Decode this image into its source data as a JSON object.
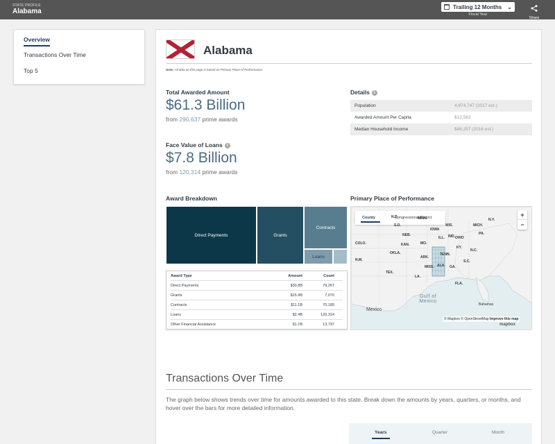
{
  "header": {
    "eyebrow": "STATE PROFILE",
    "state": "Alabama",
    "fiscal_selector": "Trailing 12 Months",
    "fiscal_caption": "Fiscal Year",
    "share_label": "Share"
  },
  "sidebar": {
    "items": [
      {
        "label": "Overview"
      },
      {
        "label": "Transactions Over Time"
      },
      {
        "label": "Top 5"
      }
    ]
  },
  "overview": {
    "title": "Alabama",
    "note_bold": "Note:",
    "note_text": "All data on this page is based on Primary Place of Performance.",
    "total_label": "Total Awarded Amount",
    "total_amount": "$61.3 Billion",
    "total_from": "from",
    "total_count": "290,637",
    "total_suffix": "prime awards",
    "loans_label": "Face Value of Loans",
    "loans_amount": "$7.8 Billion",
    "loans_from": "from",
    "loans_count": "120,314",
    "loans_suffix": "prime awards"
  },
  "details": {
    "title": "Details",
    "rows": [
      {
        "key": "Population",
        "value": "4,874,747 (2017 est.)"
      },
      {
        "key": "Awarded Amount Per Capita",
        "value": "$12,582"
      },
      {
        "key": "Median Household Income",
        "value": "$46,257 (2016 est.)"
      }
    ]
  },
  "award_breakdown": {
    "title": "Award Breakdown",
    "treemap": {
      "direct": "Direct Payments",
      "grants": "Grants",
      "contracts": "Contracts",
      "loans": "Loans"
    },
    "table": {
      "headers": [
        "Award Type",
        "Amount",
        "Count"
      ],
      "rows": [
        [
          "Direct Payments",
          "$30.8B",
          "79,267"
        ],
        [
          "Grants",
          "$15.9B",
          "7,070"
        ],
        [
          "Contracts",
          "$11.1B",
          "70,189"
        ],
        [
          "Loans",
          "$2.4B",
          "120,314"
        ],
        [
          "Other Financial Assistance",
          "$1.1B",
          "13,797"
        ]
      ]
    },
    "colors": {
      "direct": "#0c3749",
      "grants": "#244e62",
      "contracts": "#587d8f",
      "loans": "#7e9cab",
      "other": "#a4bcc7"
    }
  },
  "map": {
    "title": "Primary Place of Performance",
    "tab_county": "County",
    "tab_congressional": "Congressional District",
    "zoom_in": "+",
    "zoom_out": "−",
    "labels": [
      "N.D.",
      "MINN.",
      "MICH.",
      "N.Y.",
      "S.D.",
      "WIS.",
      "NEB.",
      "COLO.",
      "IOWA",
      "ILL.",
      "IND.",
      "OHIO",
      "PA.",
      "KAN.",
      "MO.",
      "KY.",
      "OKLA.",
      "ARK.",
      "TENN.",
      "N.M.",
      "TEX.",
      "MISS.",
      "ALA.",
      "GA.",
      "S.C.",
      "N.C.",
      "LA.",
      "FLA."
    ],
    "gulf": "Gulf of Mexico",
    "mexico": "Mexico",
    "bahamas": "Bahamas",
    "attrib_mapbox": "© Mapbox",
    "attrib_osm": "© OpenStreetMap",
    "attrib_improve": "Improve this map",
    "logo": "mapbox"
  },
  "transactions": {
    "title": "Transactions Over Time",
    "description": "The graph below shows trends over time for amounts awarded to this state. Break down the amounts by years, quarters, or months, and hover over the bars for more detailed information.",
    "tabs": [
      "Years",
      "Quarter",
      "Month"
    ]
  }
}
